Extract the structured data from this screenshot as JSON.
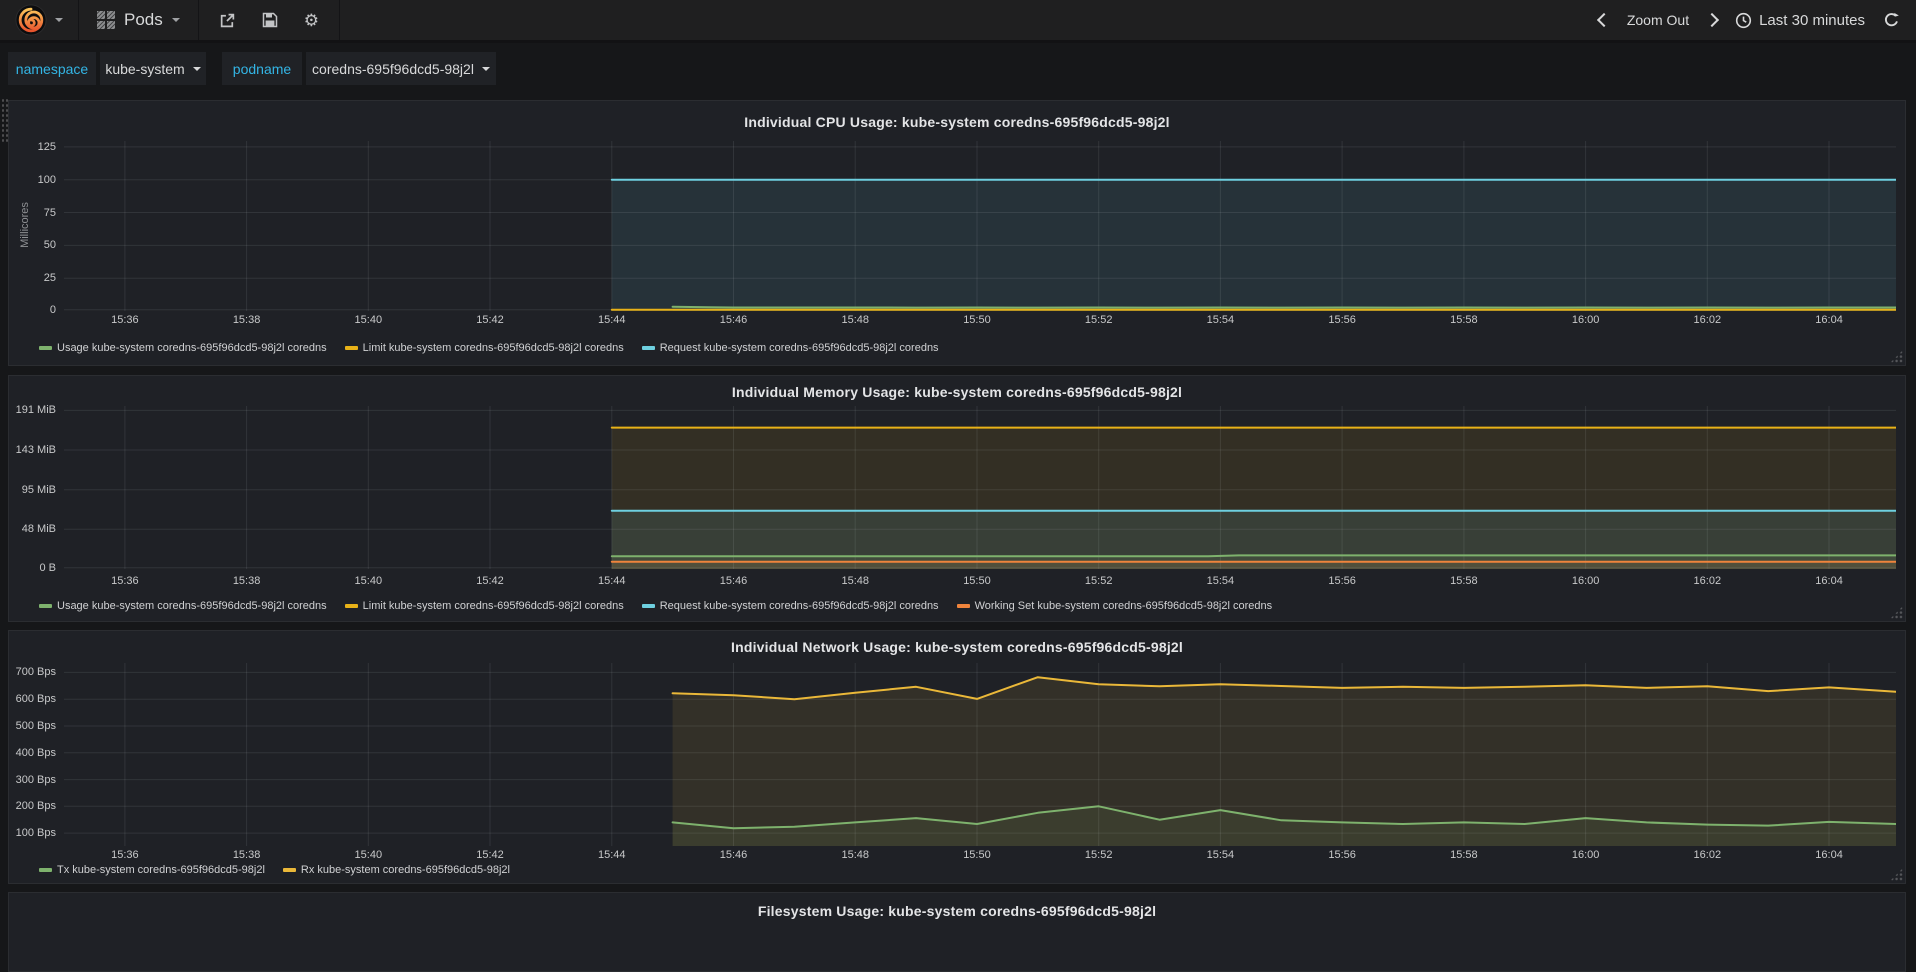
{
  "nav": {
    "dashboard_picker_label": "Pods",
    "zoom_out_label": "Zoom Out",
    "time_range_label": "Last 30 minutes"
  },
  "variables": [
    {
      "label": "namespace",
      "value": "kube-system"
    },
    {
      "label": "podname",
      "value": "coredns-695f96dcd5-98j2l"
    }
  ],
  "colors": {
    "green": "#7eb26d",
    "yellow": "#e8b218",
    "rx_yellow": "#eab839",
    "cyan": "#6ed0e0",
    "orange": "#ef843c",
    "variable_label": "#33b5e5"
  },
  "panels": [
    {
      "id": "cpu",
      "title": "Individual CPU Usage: kube-system coredns-695f96dcd5-98j2l",
      "chart": {
        "type": "line",
        "y_label": "Millicores",
        "ylim": [
          0,
          129.5
        ],
        "xlim": [
          0,
          30.1
        ],
        "yticks": [
          {
            "v": 0,
            "label": "0"
          },
          {
            "v": 25,
            "label": "25"
          },
          {
            "v": 50,
            "label": "50"
          },
          {
            "v": 75,
            "label": "75"
          },
          {
            "v": 100,
            "label": "100"
          },
          {
            "v": 125,
            "label": "125"
          }
        ],
        "xticks": [
          {
            "x": 1,
            "label": "15:36"
          },
          {
            "x": 3,
            "label": "15:38"
          },
          {
            "x": 5,
            "label": "15:40"
          },
          {
            "x": 7,
            "label": "15:42"
          },
          {
            "x": 9,
            "label": "15:44"
          },
          {
            "x": 11,
            "label": "15:46"
          },
          {
            "x": 13,
            "label": "15:48"
          },
          {
            "x": 15,
            "label": "15:50"
          },
          {
            "x": 17,
            "label": "15:52"
          },
          {
            "x": 19,
            "label": "15:54"
          },
          {
            "x": 21,
            "label": "15:56"
          },
          {
            "x": 23,
            "label": "15:58"
          },
          {
            "x": 25,
            "label": "16:00"
          },
          {
            "x": 27,
            "label": "16:02"
          },
          {
            "x": 29,
            "label": "16:04"
          }
        ],
        "series": [
          {
            "name": "Usage kube-system coredns-695f96dcd5-98j2l coredns",
            "color": "#7eb26d",
            "fill": 0.1,
            "points": [
              [
                10,
                3.2
              ],
              [
                10.6,
                2.8
              ],
              [
                11,
                2.7
              ],
              [
                12,
                2.7
              ],
              [
                13,
                2.7
              ],
              [
                14,
                2.6
              ],
              [
                15,
                2.7
              ],
              [
                16,
                2.6
              ],
              [
                17,
                2.7
              ],
              [
                18,
                2.6
              ],
              [
                19,
                2.7
              ],
              [
                20,
                2.6
              ],
              [
                21,
                2.7
              ],
              [
                22,
                2.6
              ],
              [
                23,
                2.7
              ],
              [
                24,
                2.6
              ],
              [
                25,
                2.7
              ],
              [
                26,
                2.6
              ],
              [
                27,
                2.7
              ],
              [
                28,
                2.6
              ],
              [
                29,
                2.7
              ],
              [
                30.1,
                2.7
              ]
            ]
          },
          {
            "name": "Limit kube-system coredns-695f96dcd5-98j2l coredns",
            "color": "#e8b218",
            "fill": 0,
            "points": [
              [
                9,
                0
              ],
              [
                30.1,
                0
              ]
            ]
          },
          {
            "name": "Request kube-system coredns-695f96dcd5-98j2l coredns",
            "color": "#6ed0e0",
            "fill": 0.1,
            "points": [
              [
                9,
                100
              ],
              [
                30.1,
                100
              ]
            ]
          }
        ]
      }
    },
    {
      "id": "memory",
      "title": "Individual Memory Usage: kube-system coredns-695f96dcd5-98j2l",
      "chart": {
        "type": "line",
        "ylim": [
          0,
          196
        ],
        "xlim": [
          0,
          30.1
        ],
        "yticks": [
          {
            "v": 0,
            "label": "0 B"
          },
          {
            "v": 47.7,
            "label": "48 MiB"
          },
          {
            "v": 95.4,
            "label": "95 MiB"
          },
          {
            "v": 143.1,
            "label": "143 MiB"
          },
          {
            "v": 190.7,
            "label": "191 MiB"
          }
        ],
        "xticks": [
          {
            "x": 1,
            "label": "15:36"
          },
          {
            "x": 3,
            "label": "15:38"
          },
          {
            "x": 5,
            "label": "15:40"
          },
          {
            "x": 7,
            "label": "15:42"
          },
          {
            "x": 9,
            "label": "15:44"
          },
          {
            "x": 11,
            "label": "15:46"
          },
          {
            "x": 13,
            "label": "15:48"
          },
          {
            "x": 15,
            "label": "15:50"
          },
          {
            "x": 17,
            "label": "15:52"
          },
          {
            "x": 19,
            "label": "15:54"
          },
          {
            "x": 21,
            "label": "15:56"
          },
          {
            "x": 23,
            "label": "15:58"
          },
          {
            "x": 25,
            "label": "16:00"
          },
          {
            "x": 27,
            "label": "16:02"
          },
          {
            "x": 29,
            "label": "16:04"
          }
        ],
        "series": [
          {
            "name": "Usage kube-system coredns-695f96dcd5-98j2l coredns",
            "color": "#7eb26d",
            "fill": 0.1,
            "points": [
              [
                9,
                15.4
              ],
              [
                18.8,
                15.4
              ],
              [
                19.3,
                16.4
              ],
              [
                30.1,
                16.4
              ]
            ]
          },
          {
            "name": "Limit kube-system coredns-695f96dcd5-98j2l coredns",
            "color": "#e8b218",
            "fill": 0.1,
            "points": [
              [
                9,
                170
              ],
              [
                30.1,
                170
              ]
            ]
          },
          {
            "name": "Request kube-system coredns-695f96dcd5-98j2l coredns",
            "color": "#6ed0e0",
            "fill": 0.1,
            "points": [
              [
                9,
                70
              ],
              [
                30.1,
                70
              ]
            ]
          },
          {
            "name": "Working Set kube-system coredns-695f96dcd5-98j2l coredns",
            "color": "#ef843c",
            "fill": 0.1,
            "points": [
              [
                9,
                8.6
              ],
              [
                30.1,
                8.6
              ]
            ]
          }
        ]
      }
    },
    {
      "id": "network",
      "title": "Individual Network Usage: kube-system coredns-695f96dcd5-98j2l",
      "chart": {
        "type": "line",
        "ylim": [
          52,
          735
        ],
        "xlim": [
          0,
          30.1
        ],
        "yticks": [
          {
            "v": 100,
            "label": "100 Bps"
          },
          {
            "v": 200,
            "label": "200 Bps"
          },
          {
            "v": 300,
            "label": "300 Bps"
          },
          {
            "v": 400,
            "label": "400 Bps"
          },
          {
            "v": 500,
            "label": "500 Bps"
          },
          {
            "v": 600,
            "label": "600 Bps"
          },
          {
            "v": 700,
            "label": "700 Bps"
          }
        ],
        "xticks": [
          {
            "x": 1,
            "label": "15:36"
          },
          {
            "x": 3,
            "label": "15:38"
          },
          {
            "x": 5,
            "label": "15:40"
          },
          {
            "x": 7,
            "label": "15:42"
          },
          {
            "x": 9,
            "label": "15:44"
          },
          {
            "x": 11,
            "label": "15:46"
          },
          {
            "x": 13,
            "label": "15:48"
          },
          {
            "x": 15,
            "label": "15:50"
          },
          {
            "x": 17,
            "label": "15:52"
          },
          {
            "x": 19,
            "label": "15:54"
          },
          {
            "x": 21,
            "label": "15:56"
          },
          {
            "x": 23,
            "label": "15:58"
          },
          {
            "x": 25,
            "label": "16:00"
          },
          {
            "x": 27,
            "label": "16:02"
          },
          {
            "x": 29,
            "label": "16:04"
          }
        ],
        "series": [
          {
            "name": "Tx kube-system coredns-695f96dcd5-98j2l",
            "color": "#7eb26d",
            "fill": 0.1,
            "points": [
              [
                10,
                140
              ],
              [
                11,
                118
              ],
              [
                12,
                124
              ],
              [
                13,
                140
              ],
              [
                14,
                156
              ],
              [
                15,
                134
              ],
              [
                16,
                176
              ],
              [
                17,
                200
              ],
              [
                18,
                150
              ],
              [
                19,
                186
              ],
              [
                20,
                148
              ],
              [
                21,
                140
              ],
              [
                22,
                134
              ],
              [
                23,
                140
              ],
              [
                24,
                134
              ],
              [
                25,
                156
              ],
              [
                26,
                140
              ],
              [
                27,
                132
              ],
              [
                28,
                128
              ],
              [
                29,
                142
              ],
              [
                30.1,
                134
              ]
            ]
          },
          {
            "name": "Rx kube-system coredns-695f96dcd5-98j2l",
            "color": "#eab839",
            "fill": 0.1,
            "points": [
              [
                10,
                622
              ],
              [
                11,
                615
              ],
              [
                12,
                600
              ],
              [
                13,
                624
              ],
              [
                14,
                646
              ],
              [
                15,
                601
              ],
              [
                16,
                682
              ],
              [
                17,
                656
              ],
              [
                18,
                648
              ],
              [
                19,
                656
              ],
              [
                20,
                649
              ],
              [
                21,
                642
              ],
              [
                22,
                646
              ],
              [
                23,
                642
              ],
              [
                24,
                646
              ],
              [
                25,
                652
              ],
              [
                26,
                642
              ],
              [
                27,
                648
              ],
              [
                28,
                630
              ],
              [
                29,
                644
              ],
              [
                30.1,
                628
              ]
            ]
          }
        ]
      }
    },
    {
      "id": "filesystem",
      "title": "Filesystem Usage: kube-system coredns-695f96dcd5-98j2l"
    }
  ]
}
